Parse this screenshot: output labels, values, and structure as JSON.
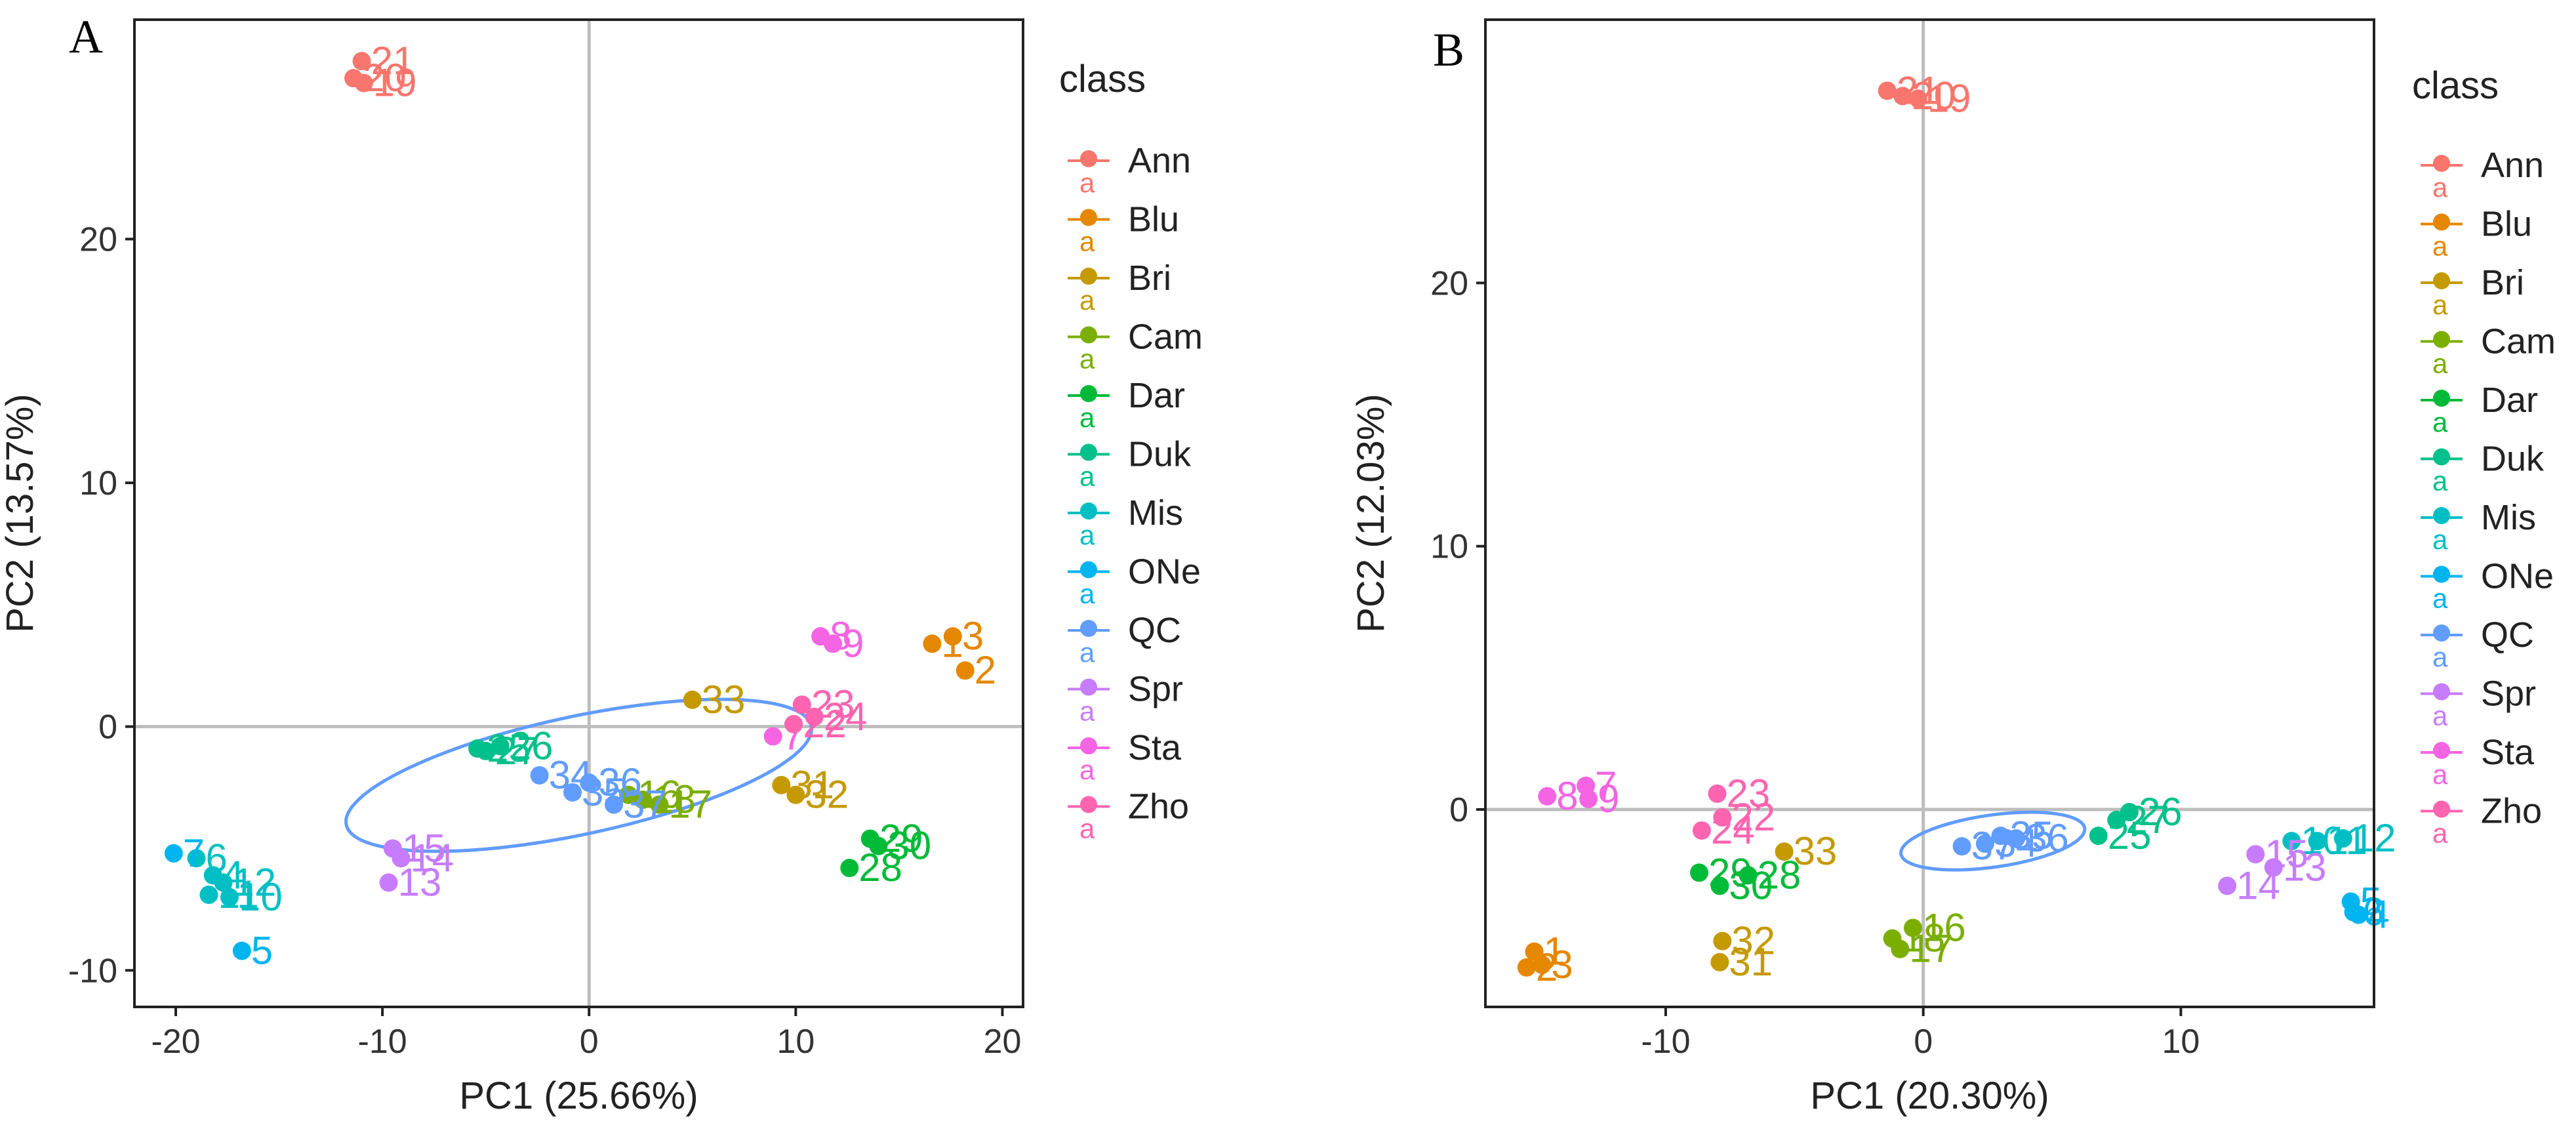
{
  "legend": {
    "title": "class",
    "items": [
      {
        "label": "Ann",
        "color": "#F8766D"
      },
      {
        "label": "Blu",
        "color": "#E58700"
      },
      {
        "label": "Bri",
        "color": "#C49A00"
      },
      {
        "label": "Cam",
        "color": "#7CAE00"
      },
      {
        "label": "Dar",
        "color": "#00BA38"
      },
      {
        "label": "Duk",
        "color": "#00C08B"
      },
      {
        "label": "Mis",
        "color": "#00BFC4"
      },
      {
        "label": "ONe",
        "color": "#00B4F0"
      },
      {
        "label": "QC",
        "color": "#619CFF"
      },
      {
        "label": "Spr",
        "color": "#C77CFF"
      },
      {
        "label": "Sta",
        "color": "#F564E3"
      },
      {
        "label": "Zho",
        "color": "#FF64B0"
      }
    ],
    "key_glyph": "a"
  },
  "chart_data": [
    {
      "panel": "A",
      "type": "scatter",
      "xlabel": "PC1 (25.66%)",
      "ylabel": "PC2 (13.57%)",
      "xlim": [
        -22,
        21
      ],
      "ylim": [
        -11.5,
        29
      ],
      "xticks": [
        -20,
        -10,
        0,
        10,
        20
      ],
      "yticks": [
        -10,
        0,
        10,
        20
      ],
      "points": [
        {
          "id": "21",
          "class": "Ann",
          "x": -11.0,
          "y": 27.3
        },
        {
          "id": "20",
          "class": "Ann",
          "x": -11.4,
          "y": 26.6
        },
        {
          "id": "19",
          "class": "Ann",
          "x": -10.9,
          "y": 26.4
        },
        {
          "id": "1",
          "class": "Blu",
          "x": 16.6,
          "y": 3.4
        },
        {
          "id": "3",
          "class": "Blu",
          "x": 17.6,
          "y": 3.7
        },
        {
          "id": "2",
          "class": "Blu",
          "x": 18.2,
          "y": 2.3
        },
        {
          "id": "33",
          "class": "Bri",
          "x": 5.0,
          "y": 1.1
        },
        {
          "id": "31",
          "class": "Bri",
          "x": 9.3,
          "y": -2.4
        },
        {
          "id": "32",
          "class": "Bri",
          "x": 10.0,
          "y": -2.8
        },
        {
          "id": "16",
          "class": "Cam",
          "x": 1.9,
          "y": -2.8
        },
        {
          "id": "18",
          "class": "Cam",
          "x": 2.6,
          "y": -3.0
        },
        {
          "id": "17",
          "class": "Cam",
          "x": 3.4,
          "y": -3.2
        },
        {
          "id": "29",
          "class": "Dar",
          "x": 13.6,
          "y": -4.6
        },
        {
          "id": "30",
          "class": "Dar",
          "x": 14.0,
          "y": -4.9
        },
        {
          "id": "28",
          "class": "Dar",
          "x": 12.6,
          "y": -5.8
        },
        {
          "id": "25",
          "class": "Duk",
          "x": -5.4,
          "y": -0.9
        },
        {
          "id": "27",
          "class": "Duk",
          "x": -5.0,
          "y": -1.0
        },
        {
          "id": "26",
          "class": "Duk",
          "x": -4.3,
          "y": -0.8
        },
        {
          "id": "6",
          "class": "Mis",
          "x": -19.0,
          "y": -5.4
        },
        {
          "id": "4",
          "class": "Mis",
          "x": -18.2,
          "y": -6.1
        },
        {
          "id": "12",
          "class": "Mis",
          "x": -17.7,
          "y": -6.4
        },
        {
          "id": "11",
          "class": "Mis",
          "x": -18.4,
          "y": -6.9
        },
        {
          "id": "10",
          "class": "Mis",
          "x": -17.4,
          "y": -7.0
        },
        {
          "id": "5",
          "class": "ONe",
          "x": -16.8,
          "y": -9.2
        },
        {
          "id": "7",
          "class": "ONe",
          "x": -20.1,
          "y": -5.2
        },
        {
          "id": "34",
          "class": "QC",
          "x": -2.4,
          "y": -2.0
        },
        {
          "id": "35",
          "class": "QC",
          "x": -0.8,
          "y": -2.7
        },
        {
          "id": "36",
          "class": "QC",
          "x": 0.0,
          "y": -2.3
        },
        {
          "id": "37",
          "class": "QC",
          "x": 1.2,
          "y": -3.2
        },
        {
          "id": "15",
          "class": "Spr",
          "x": -9.5,
          "y": -5.0
        },
        {
          "id": "14",
          "class": "Spr",
          "x": -9.1,
          "y": -5.4
        },
        {
          "id": "13",
          "class": "Spr",
          "x": -9.7,
          "y": -6.4
        },
        {
          "id": "8",
          "class": "Sta",
          "x": 11.2,
          "y": 3.7
        },
        {
          "id": "9",
          "class": "Sta",
          "x": 11.8,
          "y": 3.4
        },
        {
          "id": "7",
          "class": "Sta",
          "x": 8.9,
          "y": -0.4
        },
        {
          "id": "23",
          "class": "Zho",
          "x": 10.3,
          "y": 0.9
        },
        {
          "id": "24",
          "class": "Zho",
          "x": 10.9,
          "y": 0.4
        },
        {
          "id": "22",
          "class": "Zho",
          "x": 9.9,
          "y": 0.1
        }
      ],
      "qc_ellipse": {
        "cx": -0.5,
        "cy": -2.0,
        "rx": 11.5,
        "ry": 1.1,
        "angle_deg": -12
      }
    },
    {
      "panel": "B",
      "type": "scatter",
      "xlabel": "PC1 (20.30%)",
      "ylabel": "PC2 (12.03%)",
      "xlim": [
        -17,
        17.5
      ],
      "ylim": [
        -7.5,
        30
      ],
      "xticks": [
        -10,
        0,
        10
      ],
      "yticks": [
        0,
        10,
        20
      ],
      "points": [
        {
          "id": "21",
          "class": "Ann",
          "x": -1.4,
          "y": 27.3
        },
        {
          "id": "20",
          "class": "Ann",
          "x": -0.8,
          "y": 27.1
        },
        {
          "id": "19",
          "class": "Ann",
          "x": -0.2,
          "y": 27.0
        },
        {
          "id": "1",
          "class": "Blu",
          "x": -15.1,
          "y": -5.4
        },
        {
          "id": "2",
          "class": "Blu",
          "x": -15.4,
          "y": -6.0
        },
        {
          "id": "3",
          "class": "Blu",
          "x": -14.8,
          "y": -5.9
        },
        {
          "id": "33",
          "class": "Bri",
          "x": -5.4,
          "y": -1.6
        },
        {
          "id": "32",
          "class": "Bri",
          "x": -7.8,
          "y": -5.0
        },
        {
          "id": "31",
          "class": "Bri",
          "x": -7.9,
          "y": -5.8
        },
        {
          "id": "16",
          "class": "Cam",
          "x": -0.4,
          "y": -4.5
        },
        {
          "id": "18",
          "class": "Cam",
          "x": -1.2,
          "y": -4.9
        },
        {
          "id": "17",
          "class": "Cam",
          "x": -0.9,
          "y": -5.3
        },
        {
          "id": "29",
          "class": "Dar",
          "x": -8.7,
          "y": -2.4
        },
        {
          "id": "28",
          "class": "Dar",
          "x": -6.8,
          "y": -2.5
        },
        {
          "id": "30",
          "class": "Dar",
          "x": -7.9,
          "y": -2.9
        },
        {
          "id": "25",
          "class": "Duk",
          "x": 6.8,
          "y": -1.0
        },
        {
          "id": "27",
          "class": "Duk",
          "x": 7.5,
          "y": -0.4
        },
        {
          "id": "26",
          "class": "Duk",
          "x": 8.0,
          "y": -0.1
        },
        {
          "id": "12",
          "class": "Mis",
          "x": 16.3,
          "y": -1.1
        },
        {
          "id": "11",
          "class": "Mis",
          "x": 15.3,
          "y": -1.2
        },
        {
          "id": "10",
          "class": "Mis",
          "x": 14.3,
          "y": -1.2
        },
        {
          "id": "5",
          "class": "ONe",
          "x": 16.6,
          "y": -3.5
        },
        {
          "id": "6",
          "class": "ONe",
          "x": 16.7,
          "y": -3.9
        },
        {
          "id": "4",
          "class": "ONe",
          "x": 16.9,
          "y": -4.0
        },
        {
          "id": "34",
          "class": "QC",
          "x": 2.4,
          "y": -1.3
        },
        {
          "id": "35",
          "class": "QC",
          "x": 3.0,
          "y": -1.0
        },
        {
          "id": "36",
          "class": "QC",
          "x": 3.6,
          "y": -1.1
        },
        {
          "id": "37",
          "class": "QC",
          "x": 1.5,
          "y": -1.4
        },
        {
          "id": "15",
          "class": "Spr",
          "x": 12.9,
          "y": -1.7
        },
        {
          "id": "13",
          "class": "Spr",
          "x": 13.6,
          "y": -2.2
        },
        {
          "id": "14",
          "class": "Spr",
          "x": 11.8,
          "y": -2.9
        },
        {
          "id": "7",
          "class": "Sta",
          "x": -13.1,
          "y": 0.9
        },
        {
          "id": "8",
          "class": "Sta",
          "x": -14.6,
          "y": 0.5
        },
        {
          "id": "9",
          "class": "Sta",
          "x": -13.0,
          "y": 0.4
        },
        {
          "id": "23",
          "class": "Zho",
          "x": -8.0,
          "y": 0.6
        },
        {
          "id": "22",
          "class": "Zho",
          "x": -7.8,
          "y": -0.3
        },
        {
          "id": "24",
          "class": "Zho",
          "x": -8.6,
          "y": -0.8
        }
      ],
      "qc_ellipse": {
        "cx": 2.7,
        "cy": -1.2,
        "rx": 3.6,
        "ry": 0.45,
        "angle_deg": -8
      }
    }
  ]
}
